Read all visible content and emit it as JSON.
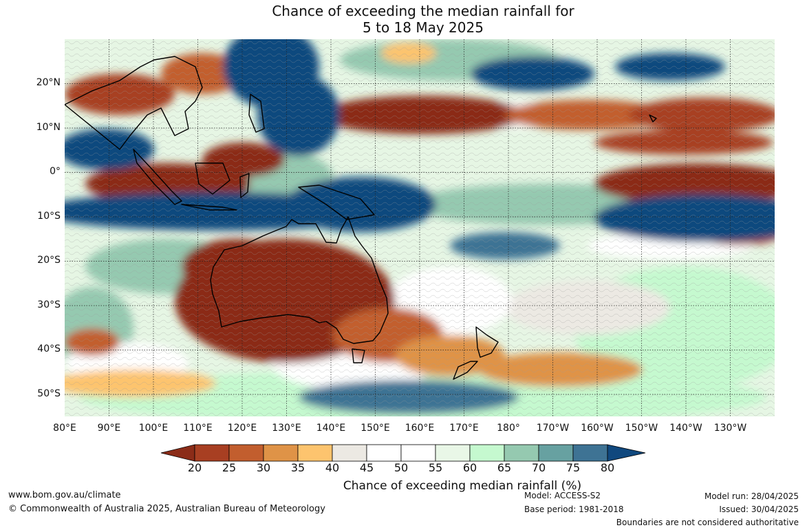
{
  "title": {
    "line1": "Chance of exceeding the median rainfall for",
    "line2": "5 to 18 May 2025"
  },
  "map": {
    "latitude_labels": [
      "20°N",
      "10°N",
      "0°",
      "10°S",
      "20°S",
      "30°S",
      "40°S",
      "50°S"
    ],
    "longitude_labels": [
      "80°E",
      "90°E",
      "100°E",
      "110°E",
      "120°E",
      "130°E",
      "140°E",
      "150°E",
      "160°E",
      "170°E",
      "180°",
      "170°W",
      "160°W",
      "150°W",
      "140°W",
      "130°W"
    ],
    "lat_values": [
      20,
      10,
      0,
      -10,
      -20,
      -30,
      -40,
      -50
    ],
    "lon_values": [
      80,
      90,
      100,
      110,
      120,
      130,
      140,
      150,
      160,
      170,
      180,
      190,
      200,
      210,
      220,
      230
    ],
    "extent": {
      "lon_min": 80,
      "lon_max": 240,
      "lat_min": -55,
      "lat_max": 30
    },
    "grid": "dotted"
  },
  "colorbar": {
    "label": "Chance of exceeding median rainfall (%)",
    "ticks": [
      "20",
      "25",
      "30",
      "35",
      "40",
      "45",
      "50",
      "55",
      "60",
      "65",
      "70",
      "75",
      "80"
    ],
    "under_color": "#8b2c18",
    "over_color": "#10487e",
    "colors": [
      "#a83f22",
      "#c25e2e",
      "#df9347",
      "#fdc46e",
      "#ece9e3",
      "#ffffff",
      "#ffffff",
      "#e9f7e7",
      "#c5f9cf",
      "#95c9b0",
      "#67a1a1",
      "#3e7394"
    ]
  },
  "footer": {
    "website": "www.bom.gov.au/climate",
    "copyright": "© Commonwealth of Australia 2025, Australian Bureau of Meteorology",
    "model": "Model: ACCESS-S2",
    "base_period": "Base period: 1981-2018",
    "model_run": "Model run: 28/04/2025",
    "issued": "Issued: 30/04/2025",
    "disclaimer": "Boundaries are not considered authoritative"
  }
}
